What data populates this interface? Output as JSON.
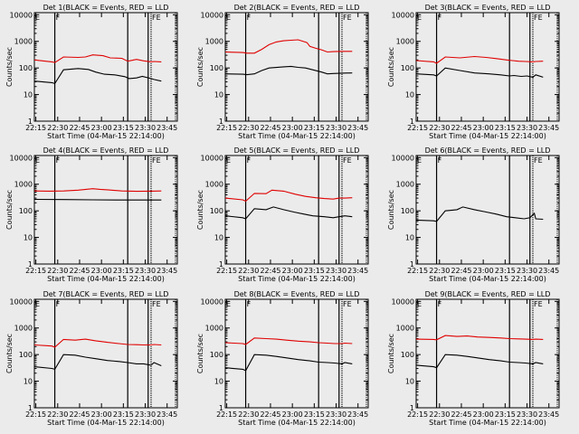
{
  "colors": {
    "background": "#ebebeb",
    "events": "#000000",
    "lld": "#e00000"
  },
  "chart_data": [
    {
      "type": "line",
      "title": "Det 1(BLACK = Events, RED = LLD",
      "xlabel": "Start Time (04-Mar-15 22:14:00)",
      "ylabel": "Counts/sec",
      "xticks": [
        "22:15",
        "22:30",
        "22:45",
        "23:00",
        "23:15",
        "23:30",
        "23:45"
      ],
      "yticks": [
        "1",
        "10",
        "100",
        "1000",
        "10000"
      ],
      "yscale": "log",
      "ylim": [
        1,
        12000
      ],
      "flags": [
        "E",
        "F",
        "FE"
      ],
      "series": [
        {
          "name": "LLD",
          "color": "#e00000",
          "x": [
            0,
            12,
            14,
            20,
            30,
            35,
            40,
            47,
            52,
            60,
            64,
            70,
            75,
            80,
            82,
            87
          ],
          "y": [
            200,
            170,
            160,
            260,
            250,
            260,
            310,
            290,
            240,
            230,
            180,
            210,
            185,
            170,
            175,
            170
          ]
        },
        {
          "name": "Events",
          "color": "#000000",
          "x": [
            0,
            12,
            14,
            20,
            30,
            37,
            42,
            48,
            55,
            62,
            65,
            70,
            74,
            80,
            82,
            87
          ],
          "y": [
            32,
            28,
            26,
            85,
            95,
            88,
            70,
            58,
            55,
            47,
            40,
            42,
            48,
            40,
            37,
            32
          ]
        }
      ]
    },
    {
      "type": "line",
      "title": "Det 2(BLACK = Events, RED = LLD",
      "xlabel": "Start Time (04-Mar-15 22:14:00)",
      "ylabel": "Counts/sec",
      "xticks": [
        "22:15",
        "22:30",
        "22:45",
        "23:00",
        "23:15",
        "23:30",
        "23:45"
      ],
      "yticks": [
        "1",
        "10",
        "100",
        "1000",
        "10000"
      ],
      "yscale": "log",
      "ylim": [
        1,
        12000
      ],
      "flags": [
        "E",
        "F",
        "FE"
      ],
      "series": [
        {
          "name": "LLD",
          "color": "#e00000",
          "x": [
            0,
            12,
            15,
            20,
            25,
            30,
            35,
            40,
            45,
            50,
            56,
            58,
            62,
            66,
            70,
            74,
            80,
            87
          ],
          "y": [
            400,
            380,
            360,
            360,
            500,
            750,
            950,
            1050,
            1100,
            1150,
            900,
            650,
            550,
            480,
            400,
            410,
            420,
            420
          ]
        },
        {
          "name": "Events",
          "color": "#000000",
          "x": [
            0,
            12,
            15,
            20,
            25,
            30,
            40,
            45,
            50,
            55,
            60,
            66,
            70,
            74,
            80,
            87
          ],
          "y": [
            60,
            58,
            56,
            60,
            80,
            100,
            110,
            115,
            105,
            100,
            85,
            70,
            60,
            62,
            64,
            65
          ]
        }
      ]
    },
    {
      "type": "line",
      "title": "Det 3(BLACK = Events, RED = LLD",
      "xlabel": "Start Time (04-Mar-15 22:14:00)",
      "ylabel": "Counts/sec",
      "xticks": [
        "22:15",
        "22:30",
        "22:45",
        "23:00",
        "23:15",
        "23:30",
        "23:45"
      ],
      "yticks": [
        "1",
        "10",
        "100",
        "1000",
        "10000"
      ],
      "yscale": "log",
      "ylim": [
        1,
        12000
      ],
      "flags": [
        "E",
        "F",
        "FE"
      ],
      "series": [
        {
          "name": "LLD",
          "color": "#e00000",
          "x": [
            0,
            12,
            14,
            20,
            30,
            40,
            48,
            55,
            62,
            66,
            70,
            75,
            80,
            82,
            87
          ],
          "y": [
            190,
            170,
            150,
            260,
            240,
            270,
            250,
            225,
            200,
            190,
            180,
            175,
            170,
            175,
            180
          ]
        },
        {
          "name": "Events",
          "color": "#000000",
          "x": [
            0,
            12,
            14,
            20,
            30,
            40,
            50,
            58,
            64,
            67,
            72,
            76,
            80,
            82,
            87
          ],
          "y": [
            60,
            55,
            50,
            100,
            80,
            65,
            60,
            55,
            50,
            52,
            48,
            50,
            45,
            55,
            45
          ]
        }
      ]
    },
    {
      "type": "line",
      "title": "Det 4(BLACK = Events, RED = LLD",
      "xlabel": "Start Time (04-Mar-15 22:14:00)",
      "ylabel": "Counts/sec",
      "xticks": [
        "22:15",
        "22:30",
        "22:45",
        "23:00",
        "23:15",
        "23:30",
        "23:45"
      ],
      "yticks": [
        "1",
        "10",
        "100",
        "1000",
        "10000"
      ],
      "yscale": "log",
      "ylim": [
        1,
        12000
      ],
      "flags": [
        "E",
        "F",
        "FE"
      ],
      "series": [
        {
          "name": "LLD",
          "color": "#e00000",
          "x": [
            0,
            10,
            20,
            30,
            40,
            45,
            50,
            60,
            70,
            80,
            87
          ],
          "y": [
            560,
            550,
            560,
            600,
            680,
            640,
            620,
            560,
            540,
            550,
            560
          ]
        },
        {
          "name": "Events",
          "color": "#000000",
          "x": [
            0,
            20,
            40,
            60,
            80,
            87
          ],
          "y": [
            270,
            265,
            260,
            255,
            255,
            255
          ]
        }
      ]
    },
    {
      "type": "line",
      "title": "Det 5(BLACK = Events, RED = LLD",
      "xlabel": "Start Time (04-Mar-15 22:14:00)",
      "ylabel": "Counts/sec",
      "xticks": [
        "22:15",
        "22:30",
        "22:45",
        "23:00",
        "23:15",
        "23:30",
        "23:45"
      ],
      "yticks": [
        "1",
        "10",
        "100",
        "1000",
        "10000"
      ],
      "yscale": "log",
      "ylim": [
        1,
        12000
      ],
      "flags": [
        "E",
        "F",
        "FE"
      ],
      "series": [
        {
          "name": "LLD",
          "color": "#e00000",
          "x": [
            0,
            12,
            14,
            20,
            28,
            32,
            40,
            48,
            55,
            62,
            68,
            74,
            78,
            82,
            87
          ],
          "y": [
            300,
            260,
            230,
            450,
            440,
            600,
            550,
            420,
            350,
            310,
            290,
            275,
            300,
            300,
            310
          ]
        },
        {
          "name": "Events",
          "color": "#000000",
          "x": [
            0,
            12,
            14,
            20,
            28,
            33,
            40,
            47,
            54,
            60,
            68,
            74,
            78,
            82,
            87
          ],
          "y": [
            65,
            55,
            50,
            120,
            110,
            140,
            110,
            90,
            75,
            65,
            60,
            55,
            60,
            65,
            60
          ]
        }
      ]
    },
    {
      "type": "line",
      "title": "Det 6(BLACK = Events, RED = LLD",
      "xlabel": "Start Time (04-Mar-15 22:14:00)",
      "ylabel": "Counts/sec",
      "xticks": [
        "22:15",
        "22:30",
        "22:45",
        "23:00",
        "23:15",
        "23:30",
        "23:45"
      ],
      "yticks": [
        "1",
        "10",
        "100",
        "1000",
        "10000"
      ],
      "yscale": "log",
      "ylim": [
        1,
        12000
      ],
      "flags": [
        "E",
        "F",
        "FE"
      ],
      "series": [
        {
          "name": "Events",
          "color": "#000000",
          "x": [
            0,
            12,
            14,
            20,
            28,
            32,
            40,
            48,
            55,
            62,
            68,
            74,
            78,
            81,
            82,
            87
          ],
          "y": [
            45,
            42,
            40,
            100,
            110,
            140,
            110,
            90,
            75,
            60,
            55,
            50,
            55,
            80,
            50,
            48
          ]
        }
      ]
    },
    {
      "type": "line",
      "title": "Det 7(BLACK = Events, RED = LLD",
      "xlabel": "Start Time (04-Mar-15 22:14:00)",
      "ylabel": "Counts/sec",
      "xticks": [
        "22:15",
        "22:30",
        "22:45",
        "23:00",
        "23:15",
        "23:30",
        "23:45"
      ],
      "yticks": [
        "1",
        "10",
        "100",
        "1000",
        "10000"
      ],
      "yscale": "log",
      "ylim": [
        1,
        12000
      ],
      "flags": [
        "E",
        "F",
        "FE"
      ],
      "series": [
        {
          "name": "LLD",
          "color": "#e00000",
          "x": [
            0,
            12,
            14,
            20,
            28,
            35,
            42,
            50,
            58,
            64,
            70,
            75,
            80,
            82,
            87
          ],
          "y": [
            230,
            210,
            190,
            370,
            350,
            380,
            330,
            290,
            260,
            240,
            235,
            230,
            230,
            240,
            230
          ]
        },
        {
          "name": "Events",
          "color": "#000000",
          "x": [
            0,
            12,
            14,
            20,
            28,
            35,
            42,
            50,
            58,
            64,
            70,
            75,
            80,
            82,
            87
          ],
          "y": [
            35,
            30,
            28,
            100,
            95,
            80,
            70,
            60,
            55,
            50,
            45,
            45,
            40,
            50,
            38
          ]
        }
      ]
    },
    {
      "type": "line",
      "title": "Det 8(BLACK = Events, RED = LLD",
      "xlabel": "Start Time (04-Mar-15 22:14:00)",
      "ylabel": "Counts/sec",
      "xticks": [
        "22:15",
        "22:30",
        "22:45",
        "23:00",
        "23:15",
        "23:30",
        "23:45"
      ],
      "yticks": [
        "1",
        "10",
        "100",
        "1000",
        "10000"
      ],
      "yscale": "log",
      "ylim": [
        1,
        12000
      ],
      "flags": [
        "E",
        "F",
        "FE"
      ],
      "series": [
        {
          "name": "LLD",
          "color": "#e00000",
          "x": [
            0,
            12,
            14,
            20,
            28,
            35,
            42,
            50,
            58,
            64,
            70,
            75,
            80,
            82,
            87
          ],
          "y": [
            280,
            260,
            240,
            420,
            400,
            380,
            350,
            320,
            300,
            280,
            270,
            260,
            260,
            270,
            260
          ]
        },
        {
          "name": "Events",
          "color": "#000000",
          "x": [
            0,
            12,
            14,
            20,
            28,
            35,
            42,
            50,
            58,
            64,
            70,
            75,
            80,
            82,
            87
          ],
          "y": [
            32,
            28,
            25,
            100,
            95,
            85,
            75,
            65,
            58,
            52,
            50,
            48,
            45,
            50,
            45
          ]
        }
      ]
    },
    {
      "type": "line",
      "title": "Det 9(BLACK = Events, RED = LLD",
      "xlabel": "Start Time (04-Mar-15 22:14:00)",
      "ylabel": "Counts/sec",
      "xticks": [
        "22:15",
        "22:30",
        "22:45",
        "23:00",
        "23:15",
        "23:30",
        "23:45"
      ],
      "yticks": [
        "1",
        "10",
        "100",
        "1000",
        "10000"
      ],
      "yscale": "log",
      "ylim": [
        1,
        12000
      ],
      "flags": [
        "E",
        "F",
        "FE"
      ],
      "series": [
        {
          "name": "LLD",
          "color": "#e00000",
          "x": [
            0,
            12,
            14,
            20,
            28,
            35,
            42,
            50,
            58,
            64,
            70,
            75,
            80,
            82,
            87
          ],
          "y": [
            380,
            370,
            360,
            520,
            480,
            500,
            460,
            440,
            420,
            400,
            390,
            380,
            370,
            380,
            370
          ]
        },
        {
          "name": "Events",
          "color": "#000000",
          "x": [
            0,
            12,
            14,
            20,
            28,
            35,
            42,
            50,
            58,
            64,
            70,
            75,
            80,
            82,
            87
          ],
          "y": [
            40,
            35,
            32,
            100,
            95,
            85,
            75,
            65,
            58,
            52,
            50,
            48,
            45,
            50,
            45
          ]
        }
      ]
    }
  ]
}
